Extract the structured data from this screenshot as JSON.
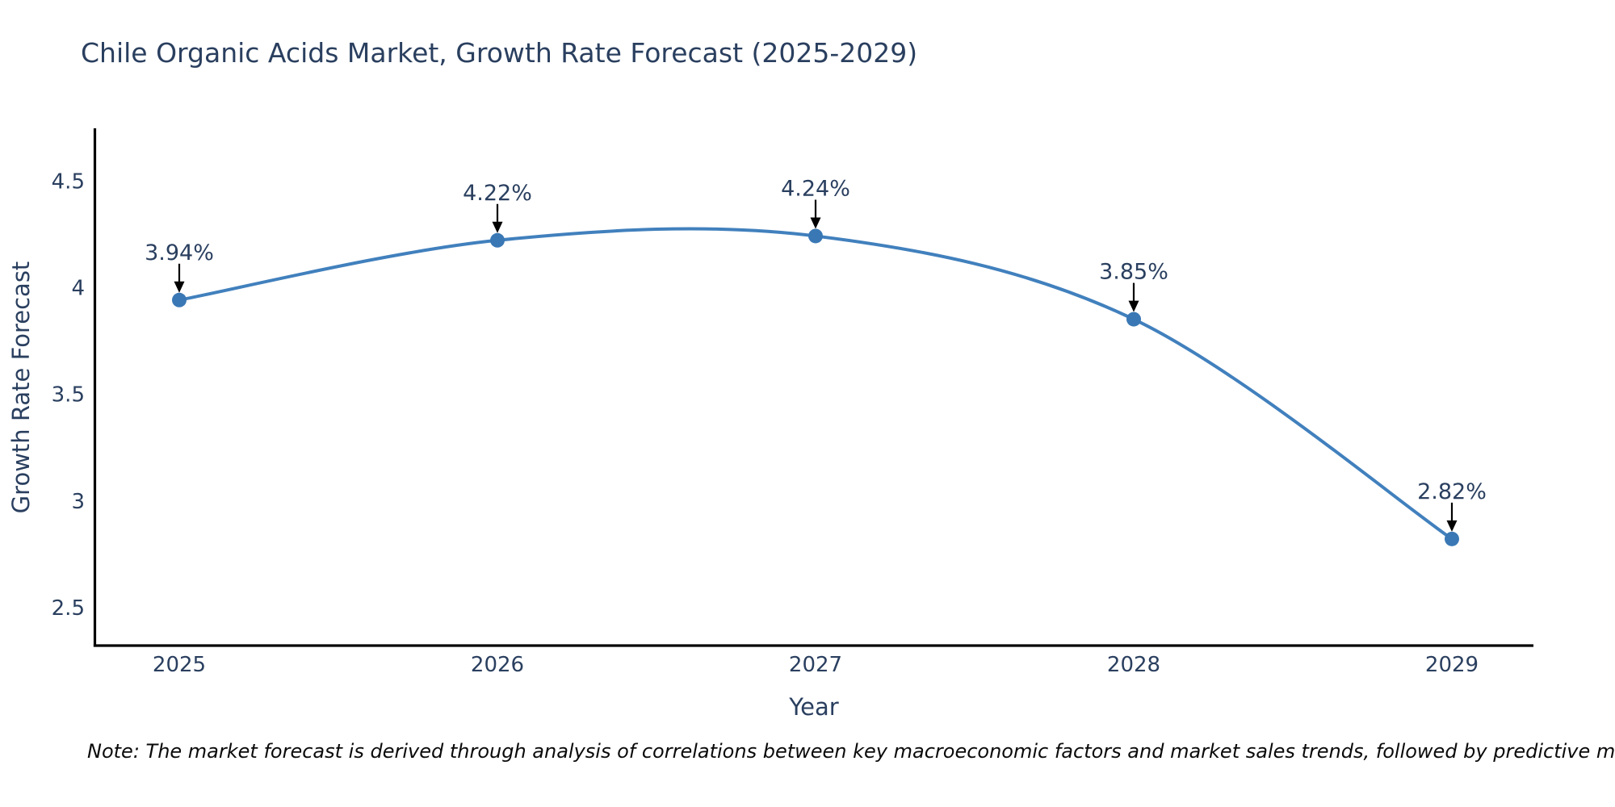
{
  "chart_data": {
    "type": "line",
    "title": "Chile Organic Acids Market, Growth Rate Forecast (2025-2029)",
    "xlabel": "Year",
    "ylabel": "Growth Rate Forecast",
    "x": [
      2025,
      2026,
      2027,
      2028,
      2029
    ],
    "y": [
      3.94,
      4.22,
      4.24,
      3.85,
      2.82
    ],
    "point_labels": [
      "3.94%",
      "4.22%",
      "4.24%",
      "3.85%",
      "2.82%"
    ],
    "xtick_labels": [
      "2025",
      "2026",
      "2027",
      "2028",
      "2029"
    ],
    "yticks": [
      2.5,
      3,
      3.5,
      4,
      4.5
    ],
    "ytick_labels": [
      "2.5",
      "3",
      "3.5",
      "4",
      "4.5"
    ],
    "ylim": [
      2.32,
      4.745
    ],
    "line_shape": "spline",
    "grid": false,
    "legend_position": "none",
    "colors": {
      "line": "#4180bd",
      "marker": "#3a78b5",
      "axis": "#000000",
      "arrow": "#000000",
      "text": "#2a3f5f"
    },
    "note": "Note: The market forecast is derived through analysis of correlations between key macroeconomic factors and market sales trends, followed by predictive modeling to project future sales"
  }
}
